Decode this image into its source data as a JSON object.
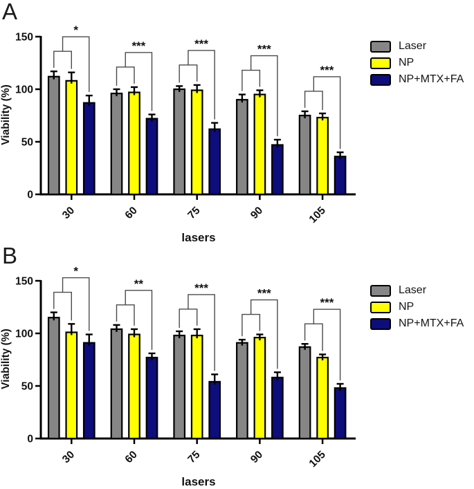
{
  "chart_data": [
    {
      "type": "bar",
      "panel_label": "A",
      "title": "",
      "xlabel": "lasers",
      "ylabel": "Viability (%)",
      "ylim": [
        0,
        150
      ],
      "yticks": [
        0,
        50,
        100,
        150
      ],
      "categories": [
        "30",
        "60",
        "75",
        "90",
        "105"
      ],
      "series": [
        {
          "name": "Laser",
          "color": "#868686",
          "values": [
            112,
            96,
            100,
            90,
            75
          ],
          "errors": [
            5,
            4,
            3,
            5,
            4
          ]
        },
        {
          "name": "NP",
          "color": "#ffff00",
          "values": [
            108,
            97,
            99,
            95,
            73
          ],
          "errors": [
            8,
            5,
            5,
            4,
            4
          ]
        },
        {
          "name": "NP+MTX+FA",
          "color": "#0d0d7c",
          "values": [
            87,
            72,
            62,
            47,
            36
          ],
          "errors": [
            7,
            4,
            6,
            5,
            4
          ]
        }
      ],
      "significance": [
        {
          "category": "30",
          "comparison": "Laser,NP vs NP+MTX+FA",
          "label": "*"
        },
        {
          "category": "60",
          "comparison": "Laser,NP vs NP+MTX+FA",
          "label": "***"
        },
        {
          "category": "75",
          "comparison": "Laser,NP vs NP+MTX+FA",
          "label": "***"
        },
        {
          "category": "90",
          "comparison": "Laser,NP vs NP+MTX+FA",
          "label": "***"
        },
        {
          "category": "105",
          "comparison": "Laser,NP vs NP+MTX+FA",
          "label": "***"
        }
      ],
      "legend_position": "right",
      "grid": false
    },
    {
      "type": "bar",
      "panel_label": "B",
      "title": "",
      "xlabel": "lasers",
      "ylabel": "Viability (%)",
      "ylim": [
        0,
        150
      ],
      "yticks": [
        0,
        50,
        100,
        150
      ],
      "categories": [
        "30",
        "60",
        "75",
        "90",
        "105"
      ],
      "series": [
        {
          "name": "Laser",
          "color": "#868686",
          "values": [
            115,
            104,
            98,
            91,
            87
          ],
          "errors": [
            5,
            4,
            4,
            3,
            3
          ]
        },
        {
          "name": "NP",
          "color": "#ffff00",
          "values": [
            101,
            99,
            98,
            96,
            77
          ],
          "errors": [
            8,
            5,
            6,
            3,
            3
          ]
        },
        {
          "name": "NP+MTX+FA",
          "color": "#0d0d7c",
          "values": [
            91,
            77,
            54,
            58,
            48
          ],
          "errors": [
            8,
            4,
            7,
            5,
            4
          ]
        }
      ],
      "significance": [
        {
          "category": "30",
          "comparison": "Laser,NP vs NP+MTX+FA",
          "label": "*"
        },
        {
          "category": "60",
          "comparison": "Laser,NP vs NP+MTX+FA",
          "label": "**"
        },
        {
          "category": "75",
          "comparison": "Laser,NP vs NP+MTX+FA",
          "label": "***"
        },
        {
          "category": "90",
          "comparison": "Laser,NP vs NP+MTX+FA",
          "label": "***"
        },
        {
          "category": "105",
          "comparison": "Laser,NP vs NP+MTX+FA",
          "label": "***"
        }
      ],
      "legend_position": "right",
      "grid": false
    }
  ],
  "style_colors": {
    "axis": "#000000",
    "error_bar": "#000000",
    "bracket": "#4a4a4a",
    "text": "#111111",
    "background": "#ffffff"
  }
}
